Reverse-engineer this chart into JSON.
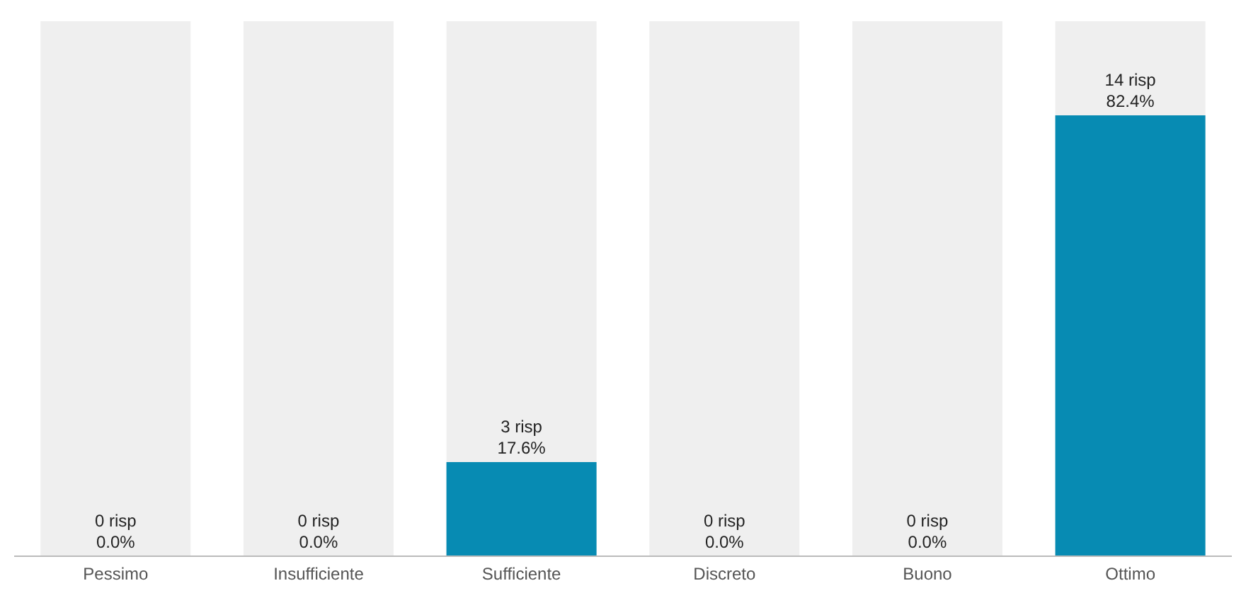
{
  "chart_data": {
    "type": "bar",
    "categories": [
      "Pessimo",
      "Insufficiente",
      "Sufficiente",
      "Discreto",
      "Buono",
      "Ottimo"
    ],
    "values": [
      0,
      0,
      17.6,
      0,
      0,
      82.4
    ],
    "value_labels": [
      "0 risp\n0.0%",
      "0 risp\n0.0%",
      "3 risp\n17.6%",
      "0 risp\n0.0%",
      "0 risp\n0.0%",
      "14 risp\n82.4%"
    ],
    "color": "#078bb3",
    "ylim": [
      0,
      100
    ]
  }
}
